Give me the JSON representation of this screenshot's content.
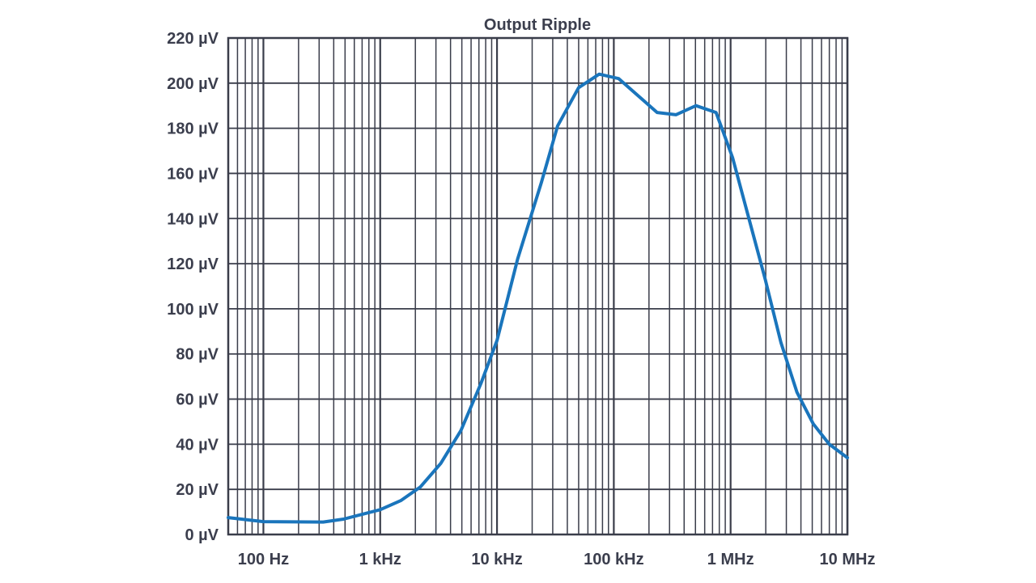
{
  "chart_data": {
    "type": "line",
    "title": "Output Ripple",
    "xlabel": "",
    "ylabel": "",
    "x_scale": "log",
    "xlim": [
      50,
      10000000
    ],
    "ylim": [
      0,
      220
    ],
    "grid": true,
    "x_ticks": [
      {
        "value": 100,
        "label": "100 Hz"
      },
      {
        "value": 1000,
        "label": "1 kHz"
      },
      {
        "value": 10000,
        "label": "10 kHz"
      },
      {
        "value": 100000,
        "label": "100 kHz"
      },
      {
        "value": 1000000,
        "label": "1 MHz"
      },
      {
        "value": 10000000,
        "label": "10 MHz"
      }
    ],
    "y_ticks": [
      {
        "value": 0,
        "label": "0 µV"
      },
      {
        "value": 20,
        "label": "20 µV"
      },
      {
        "value": 40,
        "label": "40 µV"
      },
      {
        "value": 60,
        "label": "60 µV"
      },
      {
        "value": 80,
        "label": "80 µV"
      },
      {
        "value": 100,
        "label": "100 µV"
      },
      {
        "value": 120,
        "label": "120 µV"
      },
      {
        "value": 140,
        "label": "140 µV"
      },
      {
        "value": 160,
        "label": "160 µV"
      },
      {
        "value": 180,
        "label": "180 µV"
      },
      {
        "value": 200,
        "label": "200 µV"
      },
      {
        "value": 220,
        "label": "220 µV"
      }
    ],
    "series": [
      {
        "color": "#1a75bc",
        "x": [
          50,
          100,
          325,
          485,
          1000,
          1500,
          2200,
          3300,
          4900,
          7300,
          10000,
          15000,
          24000,
          33000,
          50000,
          75000,
          110000,
          165000,
          235000,
          340000,
          505000,
          750000,
          1040000,
          1400000,
          1980000,
          2700000,
          3700000,
          5100000,
          7000000,
          10000000
        ],
        "y": [
          7.5,
          5.7,
          5.5,
          6.8,
          11,
          15,
          21,
          31.5,
          46,
          67,
          86,
          122,
          156,
          181,
          198,
          204,
          202,
          194,
          187,
          186,
          190,
          187,
          167,
          142,
          113,
          85,
          63,
          49,
          40,
          34
        ]
      }
    ]
  },
  "colors": {
    "grid": "#3a3d4a",
    "text": "#3b3e4d",
    "line": "#1a75bc"
  }
}
